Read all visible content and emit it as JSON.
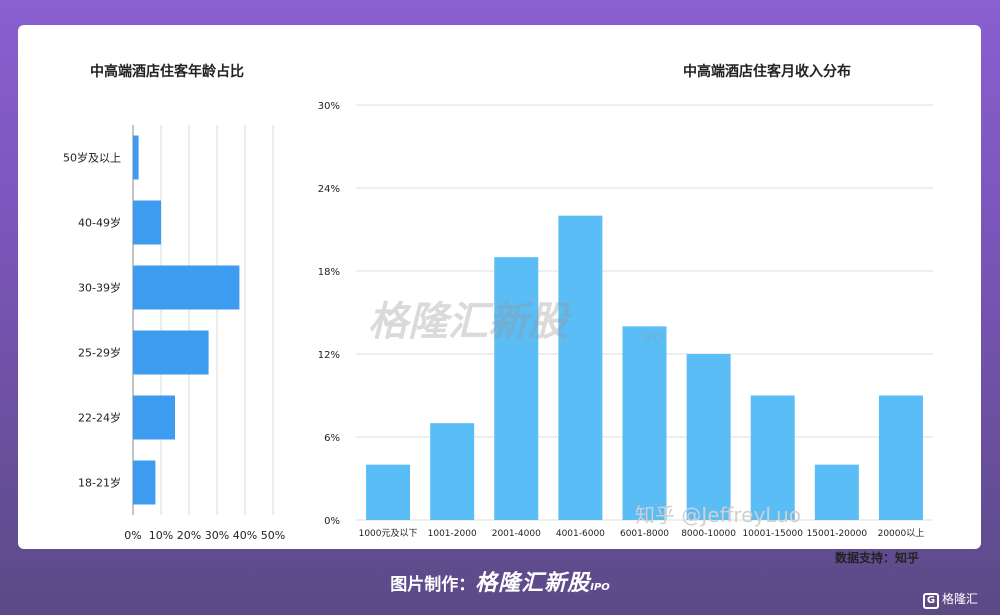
{
  "chart_data": [
    {
      "type": "bar",
      "orientation": "horizontal",
      "title": "中高端酒店住客年龄占比",
      "categories": [
        "50岁及以上",
        "40-49岁",
        "30-39岁",
        "25-29岁",
        "22-24岁",
        "18-21岁"
      ],
      "values": [
        2,
        10,
        38,
        27,
        15,
        8
      ],
      "xlim": [
        0,
        50
      ],
      "ticks": [
        "0%",
        "10%",
        "20%",
        "30%",
        "40%",
        "50%"
      ],
      "grid": true,
      "color": "#3d9bf0"
    },
    {
      "type": "bar",
      "orientation": "vertical",
      "title": "中高端酒店住客月收入分布",
      "categories": [
        "1000元及以下",
        "1001-2000",
        "2001-4000",
        "4001-6000",
        "6001-8000",
        "8000-10000",
        "10001-15000",
        "15001-20000",
        "20000以上"
      ],
      "values": [
        4,
        7,
        19,
        22,
        14,
        12,
        9,
        4,
        9
      ],
      "ylim": [
        0,
        30
      ],
      "ticks": [
        "0%",
        "6%",
        "12%",
        "18%",
        "24%",
        "30%"
      ],
      "grid": true,
      "color": "#5bbdf5"
    }
  ],
  "source": "数据支持：知乎",
  "watermark": "格隆汇新股",
  "watermark_ipo": "IPO",
  "zhihu_watermark": "知乎 @JeffreyLuo",
  "footer": {
    "prefix": "图片制作：",
    "brand": "格隆汇新股",
    "ipo": "IPO"
  },
  "corner_logo": {
    "glyph": "G",
    "text": "格隆汇"
  }
}
